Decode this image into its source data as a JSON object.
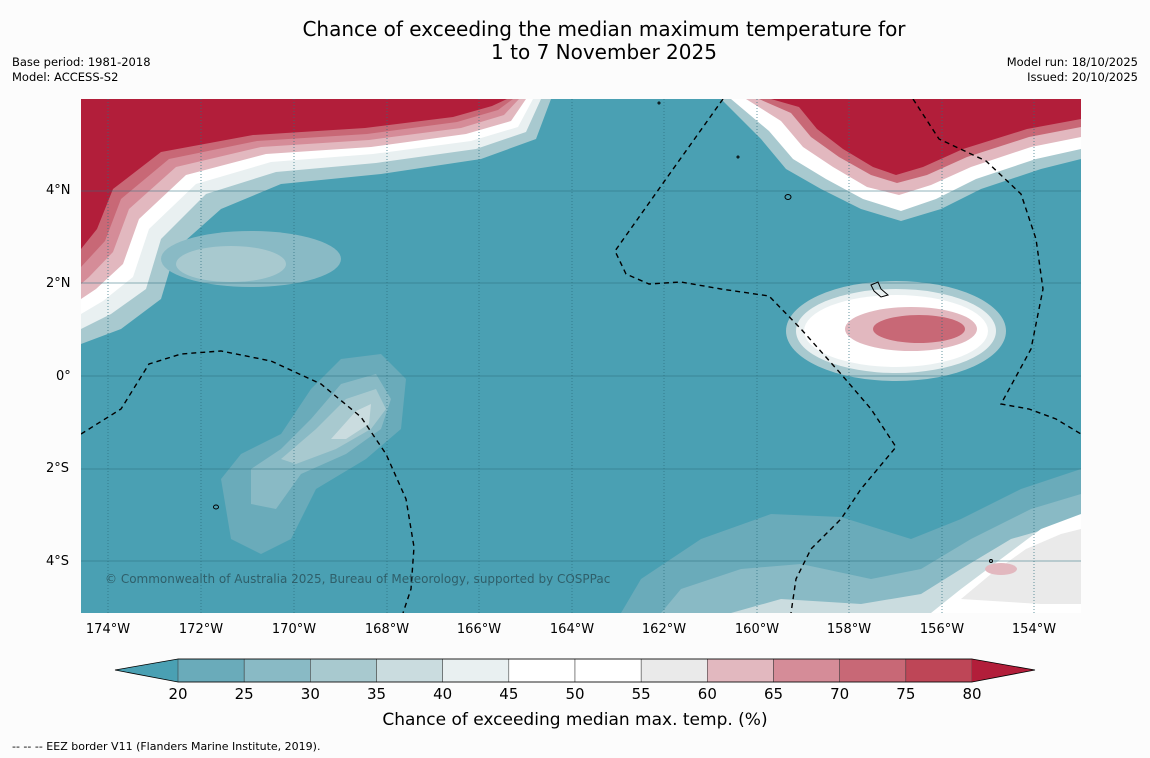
{
  "title": {
    "line1": "Chance of exceeding the median maximum temperature for",
    "line2": "1 to 7 November 2025"
  },
  "meta_left": {
    "base_period": "Base period: 1981-2018",
    "model": "Model: ACCESS-S2"
  },
  "meta_right": {
    "model_run": "Model run: 18/10/2025",
    "issued": "Issued: 20/10/2025"
  },
  "map": {
    "latitude_labels": [
      "4°N",
      "2°N",
      "0°",
      "2°S",
      "4°S"
    ],
    "longitude_labels": [
      "174°W",
      "172°W",
      "170°W",
      "168°W",
      "166°W",
      "164°W",
      "162°W",
      "160°W",
      "158°W",
      "156°W",
      "154°W"
    ],
    "copyright": "© Commonwealth of Australia 2025, Bureau of Meteorology, supported by COSPPac",
    "background_color": "#4aa0b3",
    "features": [
      {
        "name": "northwest-warm-region",
        "category": ">80"
      },
      {
        "name": "northeast-warm-region",
        "category": ">80"
      },
      {
        "name": "central-east-warm-spot",
        "category": "65-75"
      },
      {
        "name": "southeast-neutral-region",
        "category": "40-60"
      },
      {
        "name": "southwest-neutral-region",
        "category": "30-40"
      }
    ]
  },
  "colorbar": {
    "tick_labels": [
      "20",
      "25",
      "30",
      "35",
      "40",
      "45",
      "50",
      "55",
      "60",
      "65",
      "70",
      "75",
      "80"
    ],
    "colors": [
      "#4aa0b3",
      "#6aabba",
      "#89bac5",
      "#a8c9cf",
      "#cadcdf",
      "#e9f0f1",
      "#ffffff",
      "#ffffff",
      "#eaeaea",
      "#e2b8bf",
      "#d58c98",
      "#c86876",
      "#be4657",
      "#b21e3a"
    ],
    "label": "Chance of exceeding median max. temp. (%)"
  },
  "footnote": "--  --  -- EEZ border V11 (Flanders Marine Institute, 2019)."
}
